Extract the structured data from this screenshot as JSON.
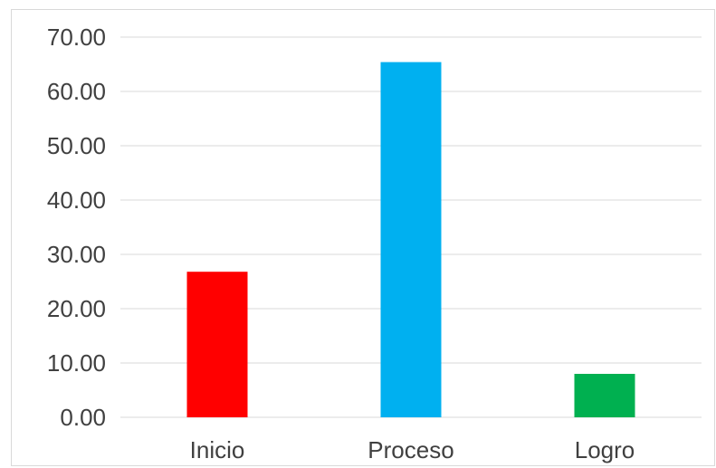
{
  "chart_data": {
    "type": "bar",
    "categories": [
      "Inicio",
      "Proceso",
      "Logro"
    ],
    "values": [
      26.8,
      65.4,
      8.0
    ],
    "colors": [
      "#ff0000",
      "#00b0f0",
      "#00b050"
    ],
    "title": "",
    "xlabel": "",
    "ylabel": "",
    "ylim": [
      0,
      70
    ],
    "yticks": [
      "0.00",
      "10.00",
      "20.00",
      "30.00",
      "40.00",
      "50.00",
      "60.00",
      "70.00"
    ],
    "ytick_values": [
      0,
      10,
      20,
      30,
      40,
      50,
      60,
      70
    ],
    "grid": true,
    "legend": "none"
  }
}
